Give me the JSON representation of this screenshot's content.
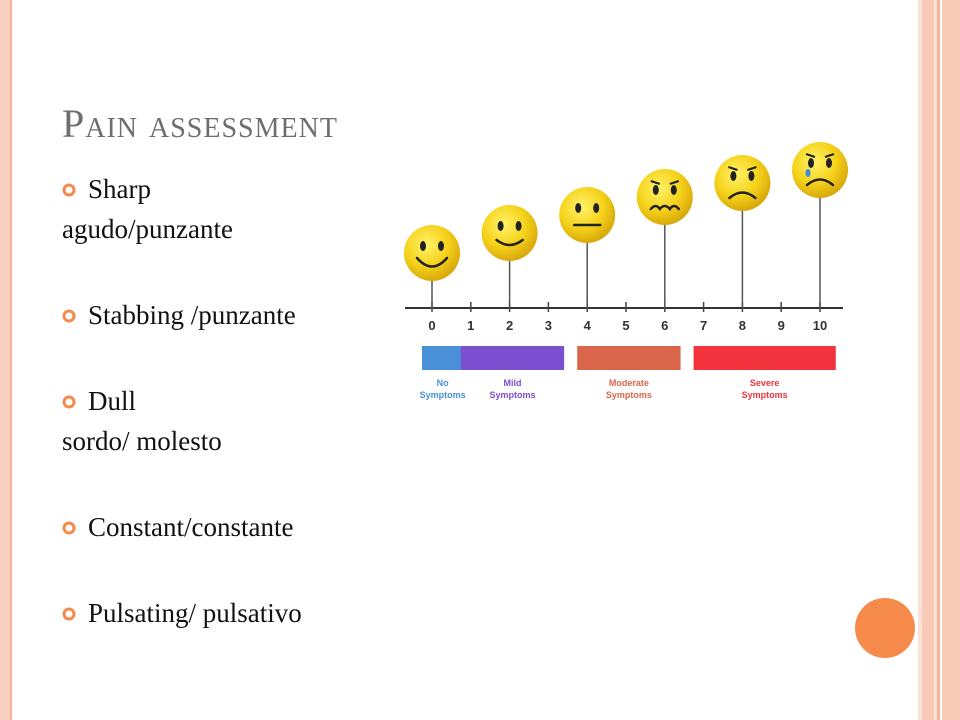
{
  "slide": {
    "title": "Pain assessment",
    "bullets": [
      {
        "text": "Sharp",
        "sub": "agudo/punzante"
      },
      {
        "text": "Stabbing /punzante",
        "sub": ""
      },
      {
        "text": "Dull",
        "sub": "sordo/ molesto"
      },
      {
        "text": "Constant/constante",
        "sub": ""
      },
      {
        "text": "Pulsating/ pulsativo",
        "sub": ""
      }
    ]
  },
  "pain_scale": {
    "numbers": [
      "0",
      "1",
      "2",
      "3",
      "4",
      "5",
      "6",
      "7",
      "8",
      "9",
      "10"
    ],
    "faces": [
      {
        "level": 0,
        "mood": "big-smile"
      },
      {
        "level": 2,
        "mood": "smile"
      },
      {
        "level": 4,
        "mood": "neutral"
      },
      {
        "level": 6,
        "mood": "worried"
      },
      {
        "level": 8,
        "mood": "sad"
      },
      {
        "level": 10,
        "mood": "crying"
      }
    ],
    "categories": [
      {
        "line1": "No",
        "line2": "Symptoms",
        "from": 0,
        "to": 0.6,
        "color": "#4a90d9"
      },
      {
        "line1": "Mild",
        "line2": "Symptoms",
        "from": 1,
        "to": 3.2,
        "color": "#7b4fd0"
      },
      {
        "line1": "Moderate",
        "line2": "Symptoms",
        "from": 4,
        "to": 6.2,
        "color": "#d9664a"
      },
      {
        "line1": "Severe",
        "line2": "Symptoms",
        "from": 7,
        "to": 10.2,
        "color": "#f2333d"
      }
    ]
  },
  "colors": {
    "title": "#6e6e6e",
    "bullet": "#f58a4b",
    "accent_border": "#f8cfc0"
  }
}
